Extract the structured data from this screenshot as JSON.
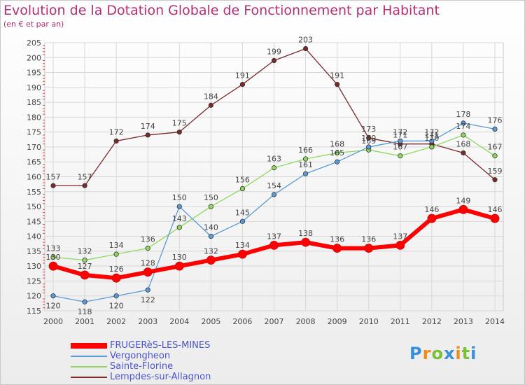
{
  "title": "Evolution de la Dotation Globale de Fonctionnement par Habitant",
  "subtitle": "(en € et par an)",
  "logo_text": "Proxiti",
  "chart_data": {
    "type": "line",
    "x": [
      2000,
      2001,
      2002,
      2003,
      2004,
      2005,
      2006,
      2007,
      2008,
      2009,
      2010,
      2011,
      2012,
      2013,
      2014
    ],
    "ylim": [
      115,
      205
    ],
    "yticks": [
      115,
      120,
      125,
      130,
      135,
      140,
      145,
      150,
      155,
      160,
      165,
      170,
      175,
      180,
      185,
      190,
      195,
      200,
      205
    ],
    "grid": true,
    "legend_position": "bottom-left",
    "series": [
      {
        "name": "FRUGERèS-LES-MINES",
        "color": "#ff0000",
        "values": [
          130,
          127,
          126,
          128,
          130,
          132,
          134,
          137,
          138,
          136,
          136,
          137,
          146,
          149,
          146
        ]
      },
      {
        "name": "Vergongheon",
        "color": "#5a9ad8",
        "values": [
          120,
          118,
          120,
          122,
          150,
          140,
          145,
          154,
          161,
          165,
          170,
          172,
          172,
          178,
          176
        ]
      },
      {
        "name": "Sainte-Florine",
        "color": "#8ed860",
        "values": [
          133,
          132,
          134,
          136,
          143,
          150,
          156,
          163,
          166,
          168,
          169,
          167,
          170,
          174,
          167
        ]
      },
      {
        "name": "Lempdes-sur-Allagnon",
        "color": "#7a2a2a",
        "values": [
          157,
          157,
          172,
          174,
          175,
          184,
          191,
          199,
          203,
          191,
          173,
          171,
          171,
          168,
          159
        ]
      }
    ]
  }
}
